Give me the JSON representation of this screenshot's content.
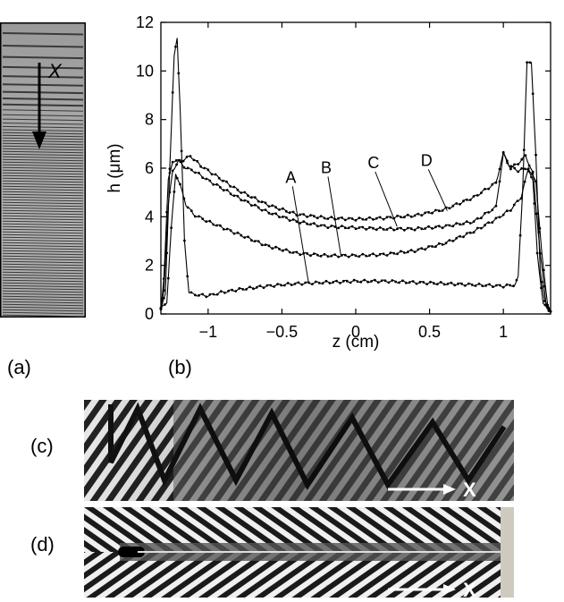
{
  "panel_labels": {
    "a": "(a)",
    "b": "(b)",
    "c": "(c)",
    "d": "(d)"
  },
  "photo_a": {
    "arrow_label": "X"
  },
  "photo_c": {
    "arrow_label": "X"
  },
  "photo_d": {
    "arrow_label": "X"
  },
  "chart_data": {
    "type": "line",
    "xlabel": "z (cm)",
    "ylabel": "h (μm)",
    "xlim": [
      -1.32,
      1.32
    ],
    "ylim": [
      0,
      12
    ],
    "x_ticks": [
      -1,
      -0.5,
      0,
      0.5,
      1
    ],
    "x_tick_labels": [
      "−1",
      "−0.5",
      "0",
      "0.5",
      "1"
    ],
    "y_ticks": [
      0,
      2,
      4,
      6,
      8,
      10,
      12
    ],
    "y_tick_labels": [
      "0",
      "2",
      "4",
      "6",
      "8",
      "10",
      "12"
    ],
    "grid": false,
    "series": [
      {
        "name": "A",
        "points": [
          [
            -1.32,
            0.2
          ],
          [
            -1.29,
            0.8
          ],
          [
            -1.26,
            6.0
          ],
          [
            -1.23,
            10.6
          ],
          [
            -1.21,
            11.4
          ],
          [
            -1.19,
            8.5
          ],
          [
            -1.16,
            3.0
          ],
          [
            -1.13,
            0.9
          ],
          [
            -1.1,
            0.8
          ],
          [
            -1.0,
            0.75
          ],
          [
            -0.9,
            0.9
          ],
          [
            -0.8,
            1.0
          ],
          [
            -0.6,
            1.15
          ],
          [
            -0.4,
            1.25
          ],
          [
            -0.2,
            1.3
          ],
          [
            0,
            1.35
          ],
          [
            0.2,
            1.35
          ],
          [
            0.4,
            1.3
          ],
          [
            0.6,
            1.25
          ],
          [
            0.8,
            1.2
          ],
          [
            1.0,
            1.15
          ],
          [
            1.08,
            1.2
          ],
          [
            1.1,
            1.5
          ],
          [
            1.13,
            5.0
          ],
          [
            1.16,
            10.3
          ],
          [
            1.19,
            10.4
          ],
          [
            1.22,
            6.5
          ],
          [
            1.25,
            1.8
          ],
          [
            1.28,
            0.5
          ],
          [
            1.32,
            0.1
          ]
        ]
      },
      {
        "name": "B",
        "points": [
          [
            -1.32,
            0.2
          ],
          [
            -1.28,
            0.5
          ],
          [
            -1.25,
            3.5
          ],
          [
            -1.22,
            5.8
          ],
          [
            -1.19,
            5.3
          ],
          [
            -1.15,
            4.5
          ],
          [
            -1.1,
            4.1
          ],
          [
            -1.0,
            3.8
          ],
          [
            -0.8,
            3.3
          ],
          [
            -0.6,
            2.8
          ],
          [
            -0.4,
            2.5
          ],
          [
            -0.2,
            2.4
          ],
          [
            0,
            2.4
          ],
          [
            0.2,
            2.45
          ],
          [
            0.4,
            2.6
          ],
          [
            0.6,
            2.9
          ],
          [
            0.8,
            3.4
          ],
          [
            0.95,
            3.9
          ],
          [
            1.05,
            4.3
          ],
          [
            1.12,
            4.8
          ],
          [
            1.17,
            6.0
          ],
          [
            1.2,
            5.5
          ],
          [
            1.23,
            2.5
          ],
          [
            1.27,
            0.4
          ],
          [
            1.32,
            0.1
          ]
        ]
      },
      {
        "name": "C",
        "points": [
          [
            -1.32,
            0.2
          ],
          [
            -1.3,
            1.0
          ],
          [
            -1.27,
            4.5
          ],
          [
            -1.24,
            5.9
          ],
          [
            -1.2,
            6.3
          ],
          [
            -1.15,
            6.0
          ],
          [
            -1.1,
            5.9
          ],
          [
            -1.0,
            5.5
          ],
          [
            -0.8,
            4.8
          ],
          [
            -0.6,
            4.2
          ],
          [
            -0.4,
            3.8
          ],
          [
            -0.2,
            3.6
          ],
          [
            0,
            3.55
          ],
          [
            0.2,
            3.5
          ],
          [
            0.4,
            3.5
          ],
          [
            0.6,
            3.6
          ],
          [
            0.8,
            3.8
          ],
          [
            0.95,
            4.4
          ],
          [
            1.0,
            6.6
          ],
          [
            1.05,
            6.0
          ],
          [
            1.1,
            6.2
          ],
          [
            1.15,
            6.5
          ],
          [
            1.2,
            5.8
          ],
          [
            1.25,
            2.5
          ],
          [
            1.29,
            0.4
          ],
          [
            1.32,
            0.1
          ]
        ]
      },
      {
        "name": "D",
        "points": [
          [
            -1.32,
            0.2
          ],
          [
            -1.3,
            1.5
          ],
          [
            -1.27,
            5.5
          ],
          [
            -1.24,
            6.3
          ],
          [
            -1.18,
            6.3
          ],
          [
            -1.12,
            6.5
          ],
          [
            -1.05,
            6.1
          ],
          [
            -0.95,
            5.7
          ],
          [
            -0.8,
            5.1
          ],
          [
            -0.6,
            4.5
          ],
          [
            -0.4,
            4.1
          ],
          [
            -0.2,
            3.95
          ],
          [
            0,
            3.9
          ],
          [
            0.2,
            3.95
          ],
          [
            0.4,
            4.05
          ],
          [
            0.6,
            4.3
          ],
          [
            0.8,
            4.8
          ],
          [
            0.95,
            5.4
          ],
          [
            1.0,
            6.6
          ],
          [
            1.04,
            6.1
          ],
          [
            1.1,
            5.9
          ],
          [
            1.16,
            6.0
          ],
          [
            1.22,
            5.5
          ],
          [
            1.26,
            2.5
          ],
          [
            1.3,
            0.4
          ],
          [
            1.32,
            0.1
          ]
        ]
      }
    ],
    "annotations": [
      {
        "text": "A",
        "x": -0.44,
        "y": 5.4,
        "target": [
          -0.32,
          1.3
        ]
      },
      {
        "text": "B",
        "x": -0.2,
        "y": 5.8,
        "target": [
          -0.1,
          2.4
        ]
      },
      {
        "text": "C",
        "x": 0.12,
        "y": 6.0,
        "target": [
          0.28,
          3.6
        ]
      },
      {
        "text": "D",
        "x": 0.48,
        "y": 6.1,
        "target": [
          0.62,
          4.25
        ]
      }
    ]
  }
}
